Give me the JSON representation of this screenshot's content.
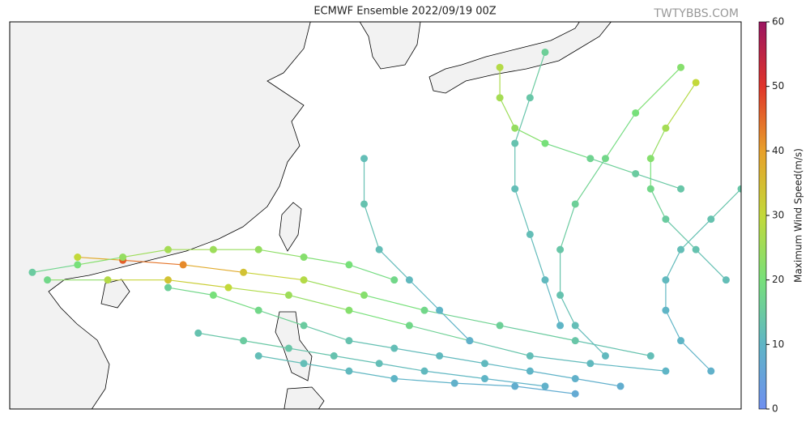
{
  "chart_data": {
    "type": "track-map",
    "title": "ECMWF Ensemble 2022/09/19 00Z",
    "watermark": "TWTYBBS.COM",
    "colorbar_label": "Maximum Wind Speed(m/s)",
    "lonlim": [
      102.5,
      151
    ],
    "latlim": [
      11.5,
      37
    ],
    "clim": [
      0,
      60
    ],
    "cticks": [
      0,
      10,
      20,
      30,
      40,
      50,
      60
    ],
    "colormap": [
      "#6f8ff0",
      "#5fb5c6",
      "#77e07a",
      "#c3d93a",
      "#e8a02a",
      "#e0342a",
      "#9b1561"
    ],
    "tracks": [
      {
        "lon": [
          145,
          140,
          135,
          130,
          126,
          122,
          118,
          114,
          110,
          107
        ],
        "lat": [
          15,
          16,
          17,
          18,
          19,
          20,
          20.5,
          21,
          21.3,
          21.5
        ],
        "wind": [
          12,
          14,
          16,
          18,
          22,
          28,
          34,
          42,
          46,
          30
        ]
      },
      {
        "lon": [
          146,
          141,
          137,
          133,
          129,
          125,
          121,
          117,
          113,
          109,
          105
        ],
        "lat": [
          14,
          14.5,
          15,
          16,
          17,
          18,
          19,
          19.5,
          20,
          20,
          20
        ],
        "wind": [
          10,
          11,
          12,
          15,
          18,
          22,
          25,
          30,
          34,
          28,
          18
        ]
      },
      {
        "lon": [
          142,
          140,
          139,
          139,
          140,
          142,
          144,
          147
        ],
        "lat": [
          15,
          17,
          19,
          22,
          25,
          28,
          31,
          34
        ],
        "wind": [
          11,
          12,
          13,
          14,
          16,
          18,
          20,
          22
        ]
      },
      {
        "lon": [
          150,
          148,
          146,
          145,
          145,
          146,
          148
        ],
        "lat": [
          20,
          22,
          24,
          26,
          28,
          30,
          33
        ],
        "wind": [
          12,
          13,
          15,
          18,
          22,
          26,
          30
        ]
      },
      {
        "lon": [
          138,
          134,
          130,
          127,
          124,
          121,
          118,
          115
        ],
        "lat": [
          13,
          13.5,
          14,
          14.5,
          15,
          15.5,
          16,
          16.5
        ],
        "wind": [
          9,
          10,
          11,
          12,
          13,
          14,
          15,
          13
        ]
      },
      {
        "lon": [
          143,
          140,
          137,
          134,
          131,
          128,
          125,
          122,
          119,
          116,
          113
        ],
        "lat": [
          13,
          13.5,
          14,
          14.5,
          15,
          15.5,
          16,
          17,
          18,
          19,
          19.5
        ],
        "wind": [
          8,
          9,
          10,
          11,
          11,
          12,
          13,
          15,
          18,
          20,
          16
        ]
      },
      {
        "lon": [
          139,
          138,
          137,
          136,
          136,
          137,
          138
        ],
        "lat": [
          17,
          20,
          23,
          26,
          29,
          32,
          35
        ],
        "wind": [
          10,
          11,
          12,
          12,
          13,
          14,
          16
        ]
      },
      {
        "lon": [
          149,
          147,
          146,
          146,
          147,
          149,
          151
        ],
        "lat": [
          14,
          16,
          18,
          20,
          22,
          24,
          26
        ],
        "wind": [
          9,
          10,
          10,
          11,
          12,
          13,
          14
        ]
      },
      {
        "lon": [
          128,
          125,
          122,
          119,
          116,
          113,
          110,
          107,
          104
        ],
        "lat": [
          20,
          21,
          21.5,
          22,
          22,
          22,
          21.5,
          21,
          20.5
        ],
        "wind": [
          18,
          20,
          22,
          24,
          25,
          26,
          24,
          20,
          15
        ]
      },
      {
        "lon": [
          140,
          136,
          132,
          128,
          125,
          122,
          119
        ],
        "lat": [
          12.5,
          13,
          13.2,
          13.5,
          14,
          14.5,
          15
        ],
        "wind": [
          7,
          8,
          9,
          10,
          11,
          12,
          12
        ]
      },
      {
        "lon": [
          133,
          131,
          129,
          127,
          126,
          126
        ],
        "lat": [
          16,
          18,
          20,
          22,
          25,
          28
        ],
        "wind": [
          9,
          10,
          11,
          12,
          13,
          12
        ]
      },
      {
        "lon": [
          147,
          144,
          141,
          138,
          136,
          135,
          135
        ],
        "lat": [
          26,
          27,
          28,
          29,
          30,
          32,
          34
        ],
        "wind": [
          14,
          15,
          17,
          20,
          24,
          26,
          28
        ]
      }
    ]
  }
}
